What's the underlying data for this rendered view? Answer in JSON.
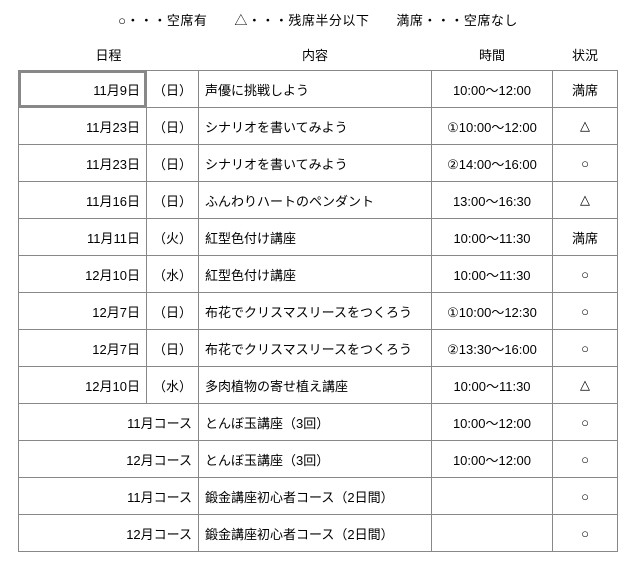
{
  "legend": "○・・・空席有　　△・・・残席半分以下　　満席・・・空席なし",
  "headers": {
    "date": "日程",
    "content": "内容",
    "time": "時間",
    "status": "状況"
  },
  "rows": [
    {
      "date": "11月9日",
      "day": "（日）",
      "content": "声優に挑戦しよう",
      "time": "10:00～12:00",
      "status": "満席",
      "highlight": true
    },
    {
      "date": "11月23日",
      "day": "（日）",
      "content": "シナリオを書いてみよう",
      "time": "①10:00～12:00",
      "status": "△"
    },
    {
      "date": "11月23日",
      "day": "（日）",
      "content": "シナリオを書いてみよう",
      "time": "②14:00～16:00",
      "status": "○"
    },
    {
      "date": "11月16日",
      "day": "（日）",
      "content": "ふんわりハートのペンダント",
      "time": "13:00～16:30",
      "status": "△"
    },
    {
      "date": "11月11日",
      "day": "（火）",
      "content": "紅型色付け講座",
      "time": "10:00～11:30",
      "status": "満席"
    },
    {
      "date": "12月10日",
      "day": "（水）",
      "content": "紅型色付け講座",
      "time": "10:00～11:30",
      "status": "○"
    },
    {
      "date": "12月7日",
      "day": "（日）",
      "content": "布花でクリスマスリースをつくろう",
      "time": "①10:00～12:30",
      "status": "○"
    },
    {
      "date": "12月7日",
      "day": "（日）",
      "content": "布花でクリスマスリースをつくろう",
      "time": "②13:30～16:00",
      "status": "○"
    },
    {
      "date": "12月10日",
      "day": "（水）",
      "content": "多肉植物の寄せ植え講座",
      "time": "10:00～11:30",
      "status": "△"
    },
    {
      "date": "11月コース",
      "day": "",
      "content": "とんぼ玉講座（3回）",
      "time": "10:00～12:00",
      "status": "○"
    },
    {
      "date": "12月コース",
      "day": "",
      "content": "とんぼ玉講座（3回）",
      "time": "10:00～12:00",
      "status": "○"
    },
    {
      "date": "11月コース",
      "day": "",
      "content": "鍛金講座初心者コース（2日間）",
      "time": "",
      "status": "○"
    },
    {
      "date": "12月コース",
      "day": "",
      "content": "鍛金講座初心者コース（2日間）",
      "time": "",
      "status": "○"
    }
  ]
}
